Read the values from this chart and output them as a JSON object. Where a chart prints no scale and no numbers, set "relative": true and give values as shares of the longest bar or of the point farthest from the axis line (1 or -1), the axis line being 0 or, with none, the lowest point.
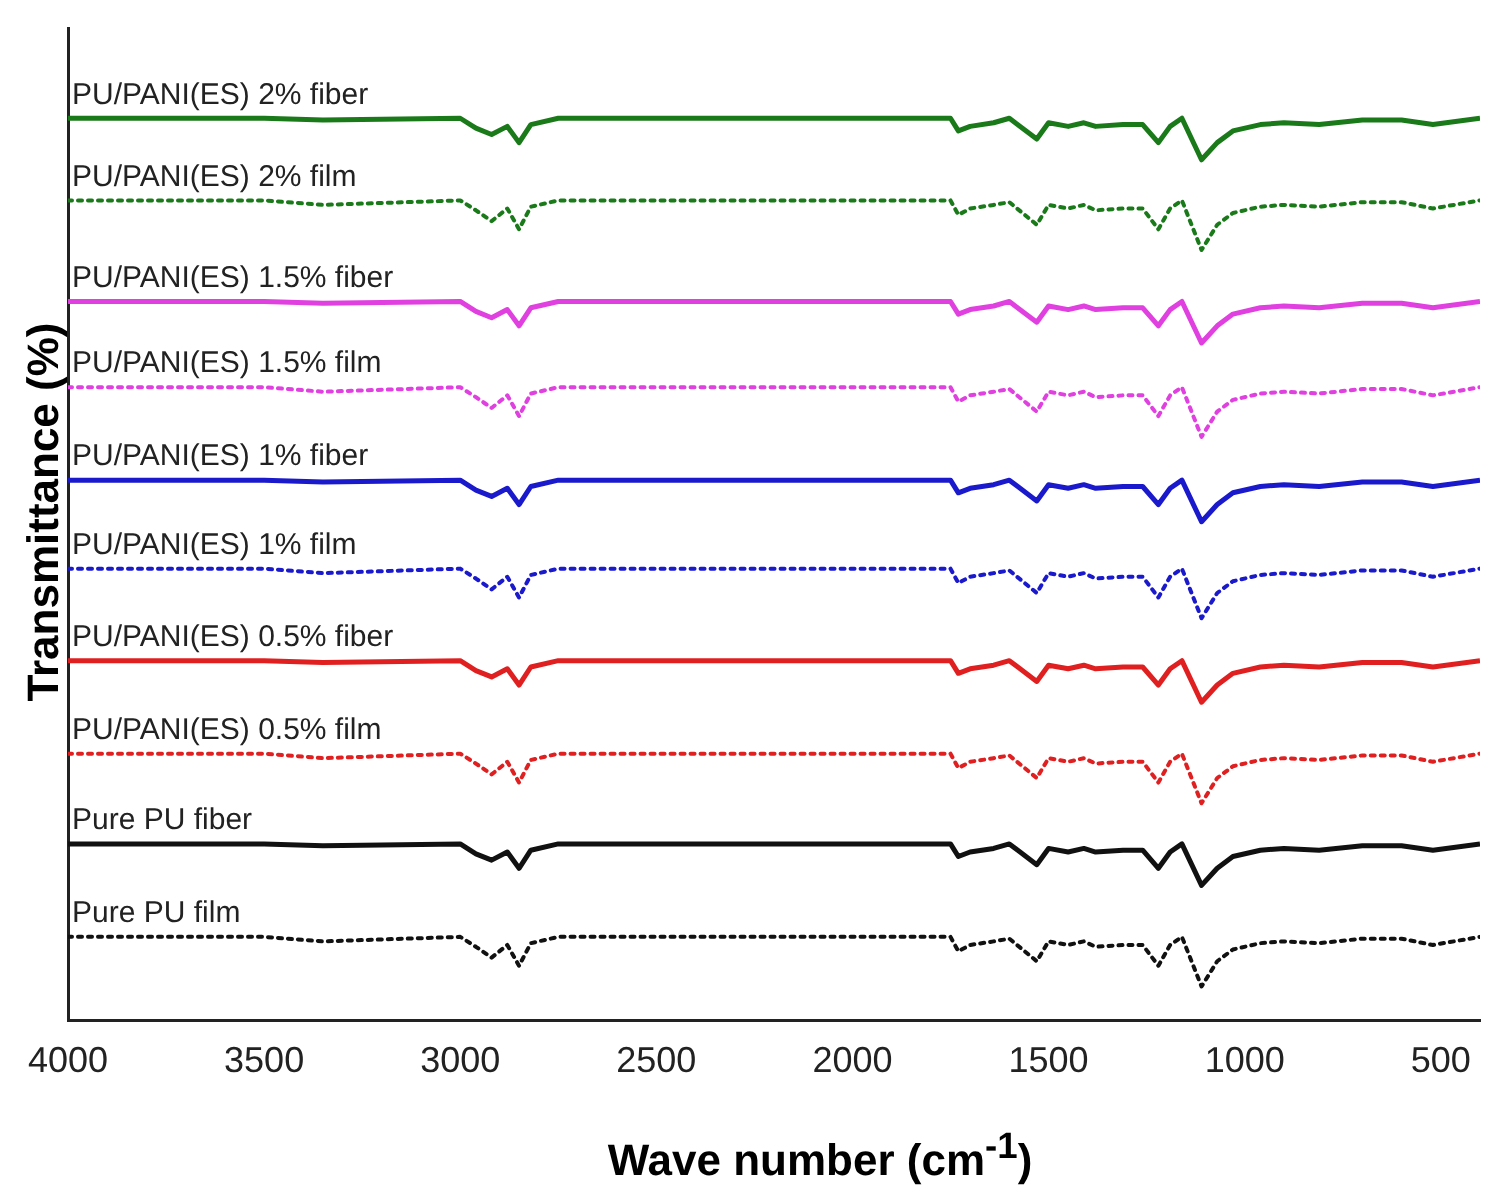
{
  "chart_data": {
    "type": "line",
    "relative": true,
    "xlabel": "Wave number (cm$^{-1}$)",
    "ylabel": "Transmittance (%)",
    "xlim": [
      4000,
      400
    ],
    "xticks": [
      4000,
      3500,
      3000,
      2500,
      2000,
      1500,
      1000,
      500
    ],
    "grid": false,
    "legend": false,
    "marker": "none",
    "x": [
      4000,
      3500,
      3350,
      3000,
      2960,
      2920,
      2880,
      2850,
      2820,
      2750,
      1750,
      1730,
      1700,
      1640,
      1600,
      1530,
      1500,
      1450,
      1410,
      1380,
      1310,
      1260,
      1220,
      1190,
      1160,
      1110,
      1070,
      1030,
      960,
      900,
      810,
      700,
      600,
      520,
      400
    ],
    "series": [
      {
        "name": "PU/PANI(ES) 2% fiber",
        "color": "#1a7a1a",
        "line_style": "solid",
        "values": [
          1,
          1,
          0.998,
          1,
          0.989,
          0.982,
          0.991,
          0.973,
          0.993,
          1,
          1,
          0.986,
          0.991,
          0.995,
          1,
          0.977,
          0.995,
          0.991,
          0.995,
          0.991,
          0.993,
          0.993,
          0.973,
          0.991,
          1,
          0.954,
          0.973,
          0.986,
          0.993,
          0.995,
          0.993,
          0.998,
          0.998,
          0.993,
          1
        ]
      },
      {
        "name": "PU/PANI(ES) 2% film",
        "color": "#1a7a1a",
        "line_style": "dotted",
        "values": [
          0.909,
          0.909,
          0.904,
          0.909,
          0.898,
          0.886,
          0.9,
          0.877,
          0.902,
          0.909,
          0.909,
          0.893,
          0.9,
          0.904,
          0.907,
          0.882,
          0.904,
          0.9,
          0.904,
          0.898,
          0.9,
          0.9,
          0.877,
          0.9,
          0.909,
          0.854,
          0.882,
          0.895,
          0.902,
          0.904,
          0.902,
          0.907,
          0.907,
          0.9,
          0.909
        ]
      },
      {
        "name": "PU/PANI(ES) 1.5% fiber",
        "color": "#e040e0",
        "line_style": "solid",
        "values": [
          0.797,
          0.797,
          0.795,
          0.797,
          0.786,
          0.779,
          0.788,
          0.77,
          0.79,
          0.797,
          0.797,
          0.783,
          0.788,
          0.792,
          0.797,
          0.774,
          0.792,
          0.788,
          0.792,
          0.788,
          0.79,
          0.79,
          0.77,
          0.788,
          0.797,
          0.751,
          0.77,
          0.783,
          0.79,
          0.792,
          0.79,
          0.795,
          0.795,
          0.79,
          0.797
        ]
      },
      {
        "name": "PU/PANI(ES) 1.5% film",
        "color": "#e040e0",
        "line_style": "dotted",
        "values": [
          0.702,
          0.702,
          0.697,
          0.702,
          0.691,
          0.679,
          0.693,
          0.67,
          0.695,
          0.702,
          0.702,
          0.686,
          0.693,
          0.697,
          0.7,
          0.675,
          0.697,
          0.693,
          0.697,
          0.691,
          0.693,
          0.693,
          0.67,
          0.693,
          0.702,
          0.647,
          0.675,
          0.688,
          0.695,
          0.697,
          0.695,
          0.7,
          0.7,
          0.693,
          0.702
        ]
      },
      {
        "name": "PU/PANI(ES) 1% fiber",
        "color": "#1a1acc",
        "line_style": "solid",
        "values": [
          0.599,
          0.599,
          0.597,
          0.599,
          0.588,
          0.581,
          0.59,
          0.572,
          0.592,
          0.599,
          0.599,
          0.585,
          0.59,
          0.594,
          0.599,
          0.576,
          0.594,
          0.59,
          0.594,
          0.59,
          0.592,
          0.592,
          0.572,
          0.59,
          0.599,
          0.553,
          0.572,
          0.585,
          0.592,
          0.594,
          0.592,
          0.597,
          0.597,
          0.592,
          0.599
        ]
      },
      {
        "name": "PU/PANI(ES) 1% film",
        "color": "#1a1acc",
        "line_style": "dotted",
        "values": [
          0.501,
          0.501,
          0.496,
          0.501,
          0.49,
          0.478,
          0.492,
          0.469,
          0.494,
          0.501,
          0.501,
          0.485,
          0.492,
          0.496,
          0.499,
          0.474,
          0.496,
          0.492,
          0.496,
          0.49,
          0.492,
          0.492,
          0.469,
          0.492,
          0.501,
          0.446,
          0.474,
          0.487,
          0.494,
          0.496,
          0.494,
          0.499,
          0.499,
          0.492,
          0.501
        ]
      },
      {
        "name": "PU/PANI(ES) 0.5% fiber",
        "color": "#e02020",
        "line_style": "solid",
        "values": [
          0.399,
          0.399,
          0.397,
          0.399,
          0.388,
          0.381,
          0.39,
          0.372,
          0.392,
          0.399,
          0.399,
          0.385,
          0.39,
          0.394,
          0.399,
          0.376,
          0.394,
          0.39,
          0.394,
          0.39,
          0.392,
          0.392,
          0.372,
          0.39,
          0.399,
          0.353,
          0.372,
          0.385,
          0.392,
          0.394,
          0.392,
          0.397,
          0.397,
          0.392,
          0.399
        ]
      },
      {
        "name": "PU/PANI(ES) 0.5% film",
        "color": "#e02020",
        "line_style": "dotted",
        "values": [
          0.296,
          0.296,
          0.291,
          0.296,
          0.285,
          0.273,
          0.287,
          0.264,
          0.289,
          0.296,
          0.296,
          0.28,
          0.287,
          0.291,
          0.294,
          0.269,
          0.291,
          0.287,
          0.291,
          0.285,
          0.287,
          0.287,
          0.264,
          0.287,
          0.296,
          0.241,
          0.269,
          0.282,
          0.289,
          0.291,
          0.289,
          0.294,
          0.294,
          0.287,
          0.296
        ]
      },
      {
        "name": "Pure PU fiber",
        "color": "#111111",
        "line_style": "solid",
        "values": [
          0.196,
          0.196,
          0.194,
          0.196,
          0.185,
          0.178,
          0.187,
          0.169,
          0.189,
          0.196,
          0.196,
          0.182,
          0.187,
          0.191,
          0.196,
          0.173,
          0.191,
          0.187,
          0.191,
          0.187,
          0.189,
          0.189,
          0.169,
          0.187,
          0.196,
          0.15,
          0.169,
          0.182,
          0.189,
          0.191,
          0.189,
          0.194,
          0.194,
          0.189,
          0.196
        ]
      },
      {
        "name": "Pure PU film",
        "color": "#111111",
        "line_style": "dotted",
        "values": [
          0.093,
          0.093,
          0.088,
          0.093,
          0.082,
          0.07,
          0.084,
          0.061,
          0.086,
          0.093,
          0.093,
          0.077,
          0.084,
          0.088,
          0.091,
          0.066,
          0.088,
          0.084,
          0.088,
          0.082,
          0.084,
          0.084,
          0.061,
          0.084,
          0.093,
          0.038,
          0.066,
          0.079,
          0.086,
          0.088,
          0.086,
          0.091,
          0.091,
          0.084,
          0.093
        ]
      }
    ]
  }
}
